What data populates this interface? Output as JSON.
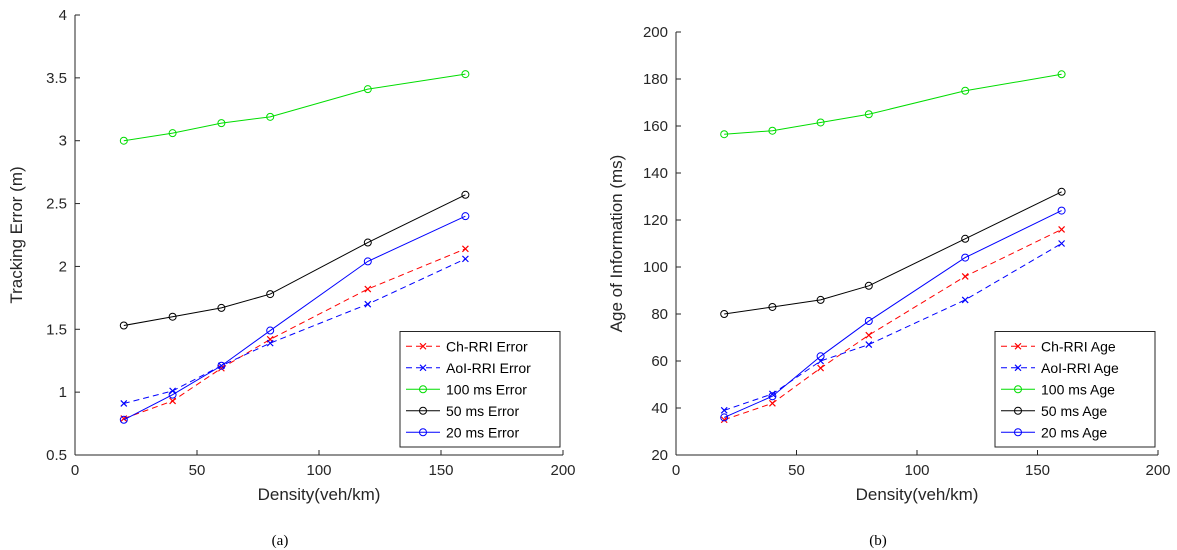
{
  "colors": {
    "Ch-RRI": "#ff0000",
    "AoI-RRI": "#0000ff",
    "100 ms": "#00dd00",
    "50 ms": "#000000",
    "20 ms": "#0000ff"
  },
  "chart_data": [
    {
      "type": "line",
      "caption": "(a)",
      "xlabel": "Density(veh/km)",
      "ylabel": "Tracking Error (m)",
      "xlim": [
        0,
        200
      ],
      "ylim": [
        0.5,
        4
      ],
      "xticks": [
        0,
        50,
        100,
        150,
        200
      ],
      "yticks": [
        0.5,
        1,
        1.5,
        2,
        2.5,
        3,
        3.5,
        4
      ],
      "ytick_labels": [
        "0.5",
        "1",
        "1.5",
        "2",
        "2.5",
        "3",
        "3.5",
        "4"
      ],
      "legend_position": "lower-right",
      "x": [
        20,
        40,
        60,
        80,
        120,
        160
      ],
      "series": [
        {
          "name": "Ch-RRI Error",
          "color": "#ff0000",
          "dash": true,
          "marker": "x",
          "values": [
            0.79,
            0.93,
            1.19,
            1.42,
            1.82,
            2.14
          ]
        },
        {
          "name": "AoI-RRI Error",
          "color": "#0000ff",
          "dash": true,
          "marker": "x",
          "values": [
            0.91,
            1.01,
            1.21,
            1.39,
            1.7,
            2.06
          ]
        },
        {
          "name": "100 ms Error",
          "color": "#00dd00",
          "dash": false,
          "marker": "o",
          "values": [
            3.0,
            3.06,
            3.14,
            3.19,
            3.41,
            3.53
          ]
        },
        {
          "name": "50 ms Error",
          "color": "#000000",
          "dash": false,
          "marker": "o",
          "values": [
            1.53,
            1.6,
            1.67,
            1.78,
            2.19,
            2.57
          ]
        },
        {
          "name": "20 ms Error",
          "color": "#0000ff",
          "dash": false,
          "marker": "o",
          "values": [
            0.78,
            0.98,
            1.21,
            1.49,
            2.04,
            2.4
          ]
        }
      ]
    },
    {
      "type": "line",
      "caption": "(b)",
      "xlabel": "Density(veh/km)",
      "ylabel": "Age of Information (ms)",
      "xlim": [
        0,
        200
      ],
      "ylim": [
        20,
        200
      ],
      "xticks": [
        0,
        50,
        100,
        150,
        200
      ],
      "yticks": [
        20,
        40,
        60,
        80,
        100,
        120,
        140,
        160,
        180,
        200
      ],
      "ytick_labels": [
        "20",
        "40",
        "60",
        "80",
        "100",
        "120",
        "140",
        "160",
        "180",
        "200"
      ],
      "legend_position": "lower-right",
      "x": [
        20,
        40,
        60,
        80,
        120,
        160
      ],
      "series": [
        {
          "name": "Ch-RRI Age",
          "color": "#ff0000",
          "dash": true,
          "marker": "x",
          "values": [
            35,
            42,
            57,
            71,
            96,
            116
          ]
        },
        {
          "name": "AoI-RRI Age",
          "color": "#0000ff",
          "dash": true,
          "marker": "x",
          "values": [
            39,
            46,
            60,
            67,
            86,
            110
          ]
        },
        {
          "name": "100 ms Age",
          "color": "#00dd00",
          "dash": false,
          "marker": "o",
          "values": [
            156.5,
            158,
            161.5,
            165,
            175,
            182
          ]
        },
        {
          "name": "50 ms Age",
          "color": "#000000",
          "dash": false,
          "marker": "o",
          "values": [
            80,
            83,
            86,
            92,
            112,
            132
          ]
        },
        {
          "name": "20 ms Age",
          "color": "#0000ff",
          "dash": false,
          "marker": "o",
          "values": [
            36,
            45,
            62,
            77,
            104,
            124
          ]
        }
      ]
    }
  ]
}
